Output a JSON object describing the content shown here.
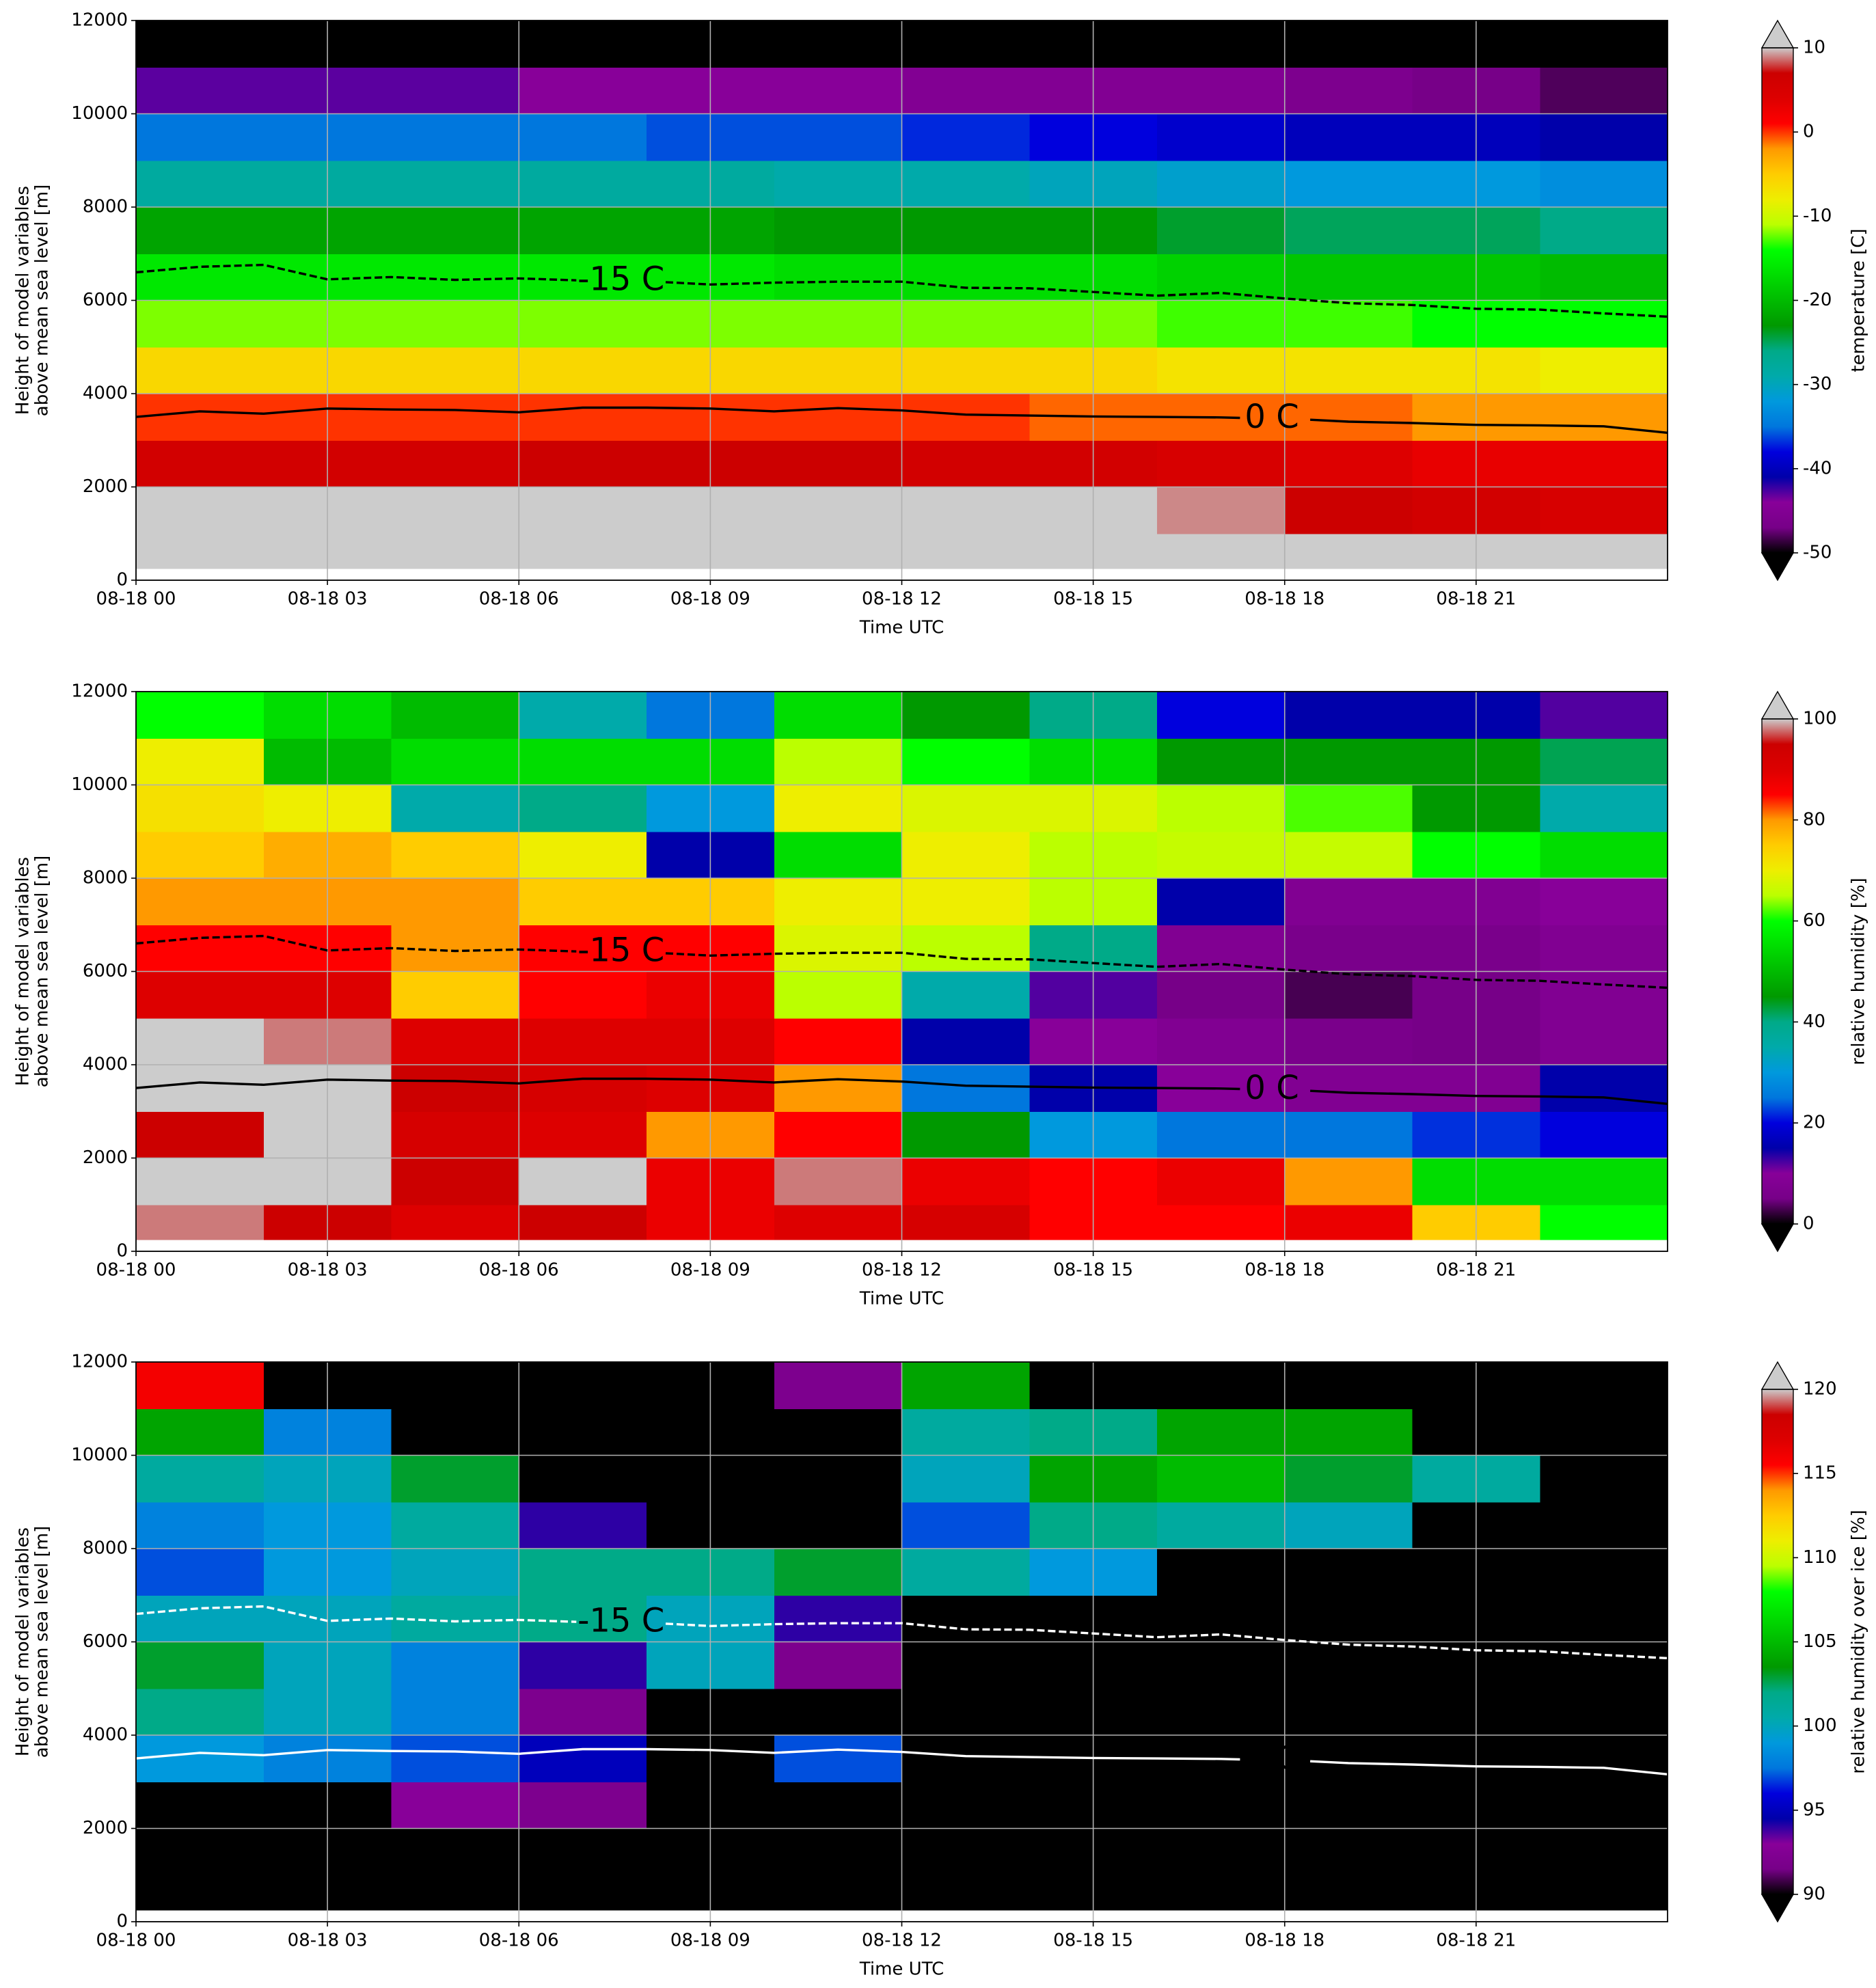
{
  "chart_data": [
    {
      "type": "heatmap",
      "colormap": "nipy_spectral",
      "xlabel": "Time UTC",
      "ylabel": [
        "Height of model variables",
        "above mean sea level [m]"
      ],
      "xlim": [
        0,
        24
      ],
      "xticks": [
        {
          "value": 0,
          "label": "08-18 00"
        },
        {
          "value": 3,
          "label": "08-18 03"
        },
        {
          "value": 6,
          "label": "08-18 06"
        },
        {
          "value": 9,
          "label": "08-18 09"
        },
        {
          "value": 12,
          "label": "08-18 12"
        },
        {
          "value": 15,
          "label": "08-18 15"
        },
        {
          "value": 18,
          "label": "08-18 18"
        },
        {
          "value": 21,
          "label": "08-18 21"
        }
      ],
      "ylim": [
        0,
        12000
      ],
      "yticks": [
        0,
        2000,
        4000,
        6000,
        8000,
        10000,
        12000
      ],
      "grid": true,
      "x_edges": [
        0,
        2,
        4,
        6,
        8,
        10,
        12,
        14,
        16,
        18,
        20,
        22,
        24
      ],
      "y_edges": [
        250,
        1000,
        2000,
        3000,
        4000,
        5000,
        6000,
        7000,
        8000,
        9000,
        10000,
        11000,
        12000
      ],
      "z": [
        [
          15,
          15,
          15,
          15,
          15,
          15,
          15,
          15,
          15,
          15,
          15,
          12
        ],
        [
          14,
          14,
          13,
          14,
          14,
          14,
          14,
          13,
          9,
          7,
          6,
          5
        ],
        [
          6,
          6,
          6,
          7,
          7,
          7,
          6,
          6,
          5,
          4,
          3,
          3
        ],
        [
          0,
          0,
          0,
          0,
          0,
          0,
          0,
          -1,
          -1,
          -1,
          -2,
          -2
        ],
        [
          -6,
          -6,
          -6,
          -6,
          -6,
          -6,
          -6,
          -6,
          -7,
          -7,
          -7,
          -8
        ],
        [
          -12,
          -12,
          -12,
          -12,
          -12,
          -12,
          -12,
          -12,
          -13,
          -13,
          -14,
          -14
        ],
        [
          -16,
          -16,
          -16,
          -16,
          -16,
          -17,
          -17,
          -17,
          -18,
          -19,
          -19,
          -20
        ],
        [
          -22,
          -22,
          -22,
          -22,
          -22,
          -23,
          -23,
          -23,
          -24,
          -25,
          -25,
          -26
        ],
        [
          -28,
          -28,
          -28,
          -28,
          -28,
          -29,
          -29,
          -30,
          -31,
          -32,
          -32,
          -33
        ],
        [
          -35,
          -35,
          -35,
          -35,
          -36,
          -36,
          -37,
          -38,
          -39,
          -40,
          -40,
          -41
        ],
        [
          -43,
          -43,
          -43,
          -44,
          -44,
          -44,
          -45,
          -45,
          -45,
          -46,
          -47,
          -48
        ],
        [
          -52,
          -52,
          -52,
          -52,
          -52,
          -52,
          -52,
          -52,
          -52,
          -52,
          -52,
          -52
        ]
      ],
      "clim": [
        -50,
        10
      ],
      "cticks": [
        -50,
        -40,
        -30,
        -20,
        -10,
        0,
        10
      ],
      "colorbar_label": "temperature [C]",
      "colorbar_extend": "both",
      "contours": [
        {
          "name": "-15 C",
          "linestyle": "dashed",
          "color": "#000000",
          "x": [
            0,
            1,
            2,
            3,
            4,
            5,
            6,
            6.9,
            7.6,
            8.3,
            9,
            10,
            11,
            12,
            13,
            14,
            15,
            16,
            17,
            18,
            19,
            20,
            21,
            22,
            23,
            24
          ],
          "values": [
            6600,
            6720,
            6760,
            6450,
            6500,
            6440,
            6470,
            6430,
            null,
            6390,
            6340,
            6380,
            6400,
            6400,
            6270,
            6260,
            6180,
            6100,
            6160,
            6040,
            5940,
            5900,
            5820,
            5800,
            5720,
            5650
          ]
        },
        {
          "name": "0 C",
          "linestyle": "solid",
          "color": "#000000",
          "x": [
            0,
            1,
            2,
            3,
            4,
            5,
            6,
            7,
            8,
            9,
            10,
            11,
            12,
            13,
            14,
            15,
            16,
            17,
            17.3,
            17.8,
            18.4,
            19,
            20,
            21,
            22,
            23,
            24
          ],
          "values": [
            3500,
            3620,
            3570,
            3680,
            3660,
            3650,
            3600,
            3700,
            3700,
            3680,
            3620,
            3690,
            3640,
            3550,
            3530,
            3510,
            3500,
            3490,
            3480,
            null,
            3440,
            3400,
            3370,
            3330,
            3320,
            3300,
            3160
          ]
        }
      ]
    },
    {
      "type": "heatmap",
      "colormap": "nipy_spectral",
      "xlabel": "Time UTC",
      "ylabel": [
        "Height of model variables",
        "above mean sea level [m]"
      ],
      "xlim": [
        0,
        24
      ],
      "xticks": [
        {
          "value": 0,
          "label": "08-18 00"
        },
        {
          "value": 3,
          "label": "08-18 03"
        },
        {
          "value": 6,
          "label": "08-18 06"
        },
        {
          "value": 9,
          "label": "08-18 09"
        },
        {
          "value": 12,
          "label": "08-18 12"
        },
        {
          "value": 15,
          "label": "08-18 15"
        },
        {
          "value": 18,
          "label": "08-18 18"
        },
        {
          "value": 21,
          "label": "08-18 21"
        }
      ],
      "ylim": [
        0,
        12000
      ],
      "yticks": [
        0,
        2000,
        4000,
        6000,
        8000,
        10000,
        12000
      ],
      "grid": true,
      "x_edges": [
        0,
        2,
        4,
        6,
        8,
        10,
        12,
        14,
        16,
        18,
        20,
        22,
        24
      ],
      "y_edges": [
        250,
        1000,
        2000,
        3000,
        4000,
        5000,
        6000,
        7000,
        8000,
        9000,
        10000,
        11000,
        12000
      ],
      "z": [
        [
          98,
          95,
          90,
          95,
          88,
          90,
          92,
          85,
          85,
          88,
          75,
          60
        ],
        [
          100,
          100,
          95,
          100,
          88,
          98,
          88,
          85,
          88,
          80,
          55,
          55
        ],
        [
          95,
          100,
          92,
          90,
          80,
          85,
          45,
          30,
          25,
          25,
          22,
          20
        ],
        [
          100,
          100,
          95,
          92,
          90,
          80,
          25,
          15,
          10,
          8,
          8,
          15
        ],
        [
          100,
          98,
          90,
          90,
          90,
          85,
          15,
          10,
          8,
          6,
          5,
          8
        ],
        [
          90,
          90,
          75,
          85,
          88,
          65,
          35,
          12,
          5,
          3,
          5,
          8
        ],
        [
          85,
          85,
          80,
          85,
          85,
          68,
          65,
          40,
          8,
          6,
          6,
          8
        ],
        [
          80,
          80,
          80,
          75,
          75,
          70,
          70,
          65,
          15,
          8,
          8,
          10
        ],
        [
          75,
          78,
          75,
          70,
          15,
          55,
          70,
          65,
          66,
          66,
          60,
          55
        ],
        [
          72,
          70,
          35,
          40,
          30,
          70,
          68,
          68,
          65,
          62,
          45,
          35
        ],
        [
          70,
          50,
          55,
          55,
          55,
          65,
          60,
          55,
          45,
          45,
          45,
          42
        ],
        [
          60,
          55,
          50,
          35,
          25,
          55,
          45,
          40,
          20,
          15,
          15,
          12
        ]
      ],
      "clim": [
        0,
        100
      ],
      "cticks": [
        0,
        20,
        40,
        60,
        80,
        100
      ],
      "colorbar_label": "relative humidity [%]",
      "colorbar_extend": "both",
      "contours": [
        {
          "name": "-15 C",
          "linestyle": "dashed",
          "color": "#000000",
          "x": [
            0,
            1,
            2,
            3,
            4,
            5,
            6,
            6.9,
            7.6,
            8.3,
            9,
            10,
            11,
            12,
            13,
            14,
            15,
            16,
            17,
            18,
            19,
            20,
            21,
            22,
            23,
            24
          ],
          "values": [
            6600,
            6720,
            6760,
            6450,
            6500,
            6440,
            6470,
            6430,
            null,
            6390,
            6340,
            6380,
            6400,
            6400,
            6270,
            6260,
            6180,
            6100,
            6160,
            6040,
            5940,
            5900,
            5820,
            5800,
            5720,
            5650
          ]
        },
        {
          "name": "0 C",
          "linestyle": "solid",
          "color": "#000000",
          "x": [
            0,
            1,
            2,
            3,
            4,
            5,
            6,
            7,
            8,
            9,
            10,
            11,
            12,
            13,
            14,
            15,
            16,
            17,
            17.3,
            17.8,
            18.4,
            19,
            20,
            21,
            22,
            23,
            24
          ],
          "values": [
            3500,
            3620,
            3570,
            3680,
            3660,
            3650,
            3600,
            3700,
            3700,
            3680,
            3620,
            3690,
            3640,
            3550,
            3530,
            3510,
            3500,
            3490,
            3480,
            null,
            3440,
            3400,
            3370,
            3330,
            3320,
            3300,
            3160
          ]
        }
      ]
    },
    {
      "type": "heatmap",
      "colormap": "nipy_spectral",
      "xlabel": "Time UTC",
      "ylabel": [
        "Height of model variables",
        "above mean sea level [m]"
      ],
      "xlim": [
        0,
        24
      ],
      "xticks": [
        {
          "value": 0,
          "label": "08-18 00"
        },
        {
          "value": 3,
          "label": "08-18 03"
        },
        {
          "value": 6,
          "label": "08-18 06"
        },
        {
          "value": 9,
          "label": "08-18 09"
        },
        {
          "value": 12,
          "label": "08-18 12"
        },
        {
          "value": 15,
          "label": "08-18 15"
        },
        {
          "value": 18,
          "label": "08-18 18"
        },
        {
          "value": 21,
          "label": "08-18 21"
        }
      ],
      "ylim": [
        0,
        12000
      ],
      "yticks": [
        0,
        2000,
        4000,
        6000,
        8000,
        10000,
        12000
      ],
      "grid": true,
      "x_edges": [
        0,
        2,
        4,
        6,
        8,
        10,
        12,
        14,
        16,
        18,
        20,
        22,
        24
      ],
      "y_edges": [
        250,
        1000,
        2000,
        3000,
        4000,
        5000,
        6000,
        7000,
        8000,
        9000,
        10000,
        11000,
        12000
      ],
      "z": [
        [
          80,
          80,
          80,
          80,
          80,
          80,
          80,
          80,
          80,
          80,
          80,
          80
        ],
        [
          80,
          85,
          90,
          80,
          80,
          80,
          80,
          80,
          80,
          80,
          80,
          80
        ],
        [
          80,
          80,
          93,
          92,
          80,
          80,
          80,
          80,
          80,
          80,
          80,
          80
        ],
        [
          99,
          98,
          97,
          95,
          80,
          97,
          80,
          80,
          80,
          80,
          80,
          80
        ],
        [
          102,
          100,
          98,
          92,
          80,
          80,
          80,
          80,
          80,
          80,
          80,
          80
        ],
        [
          103,
          100,
          98,
          94,
          100,
          92,
          80,
          80,
          80,
          80,
          80,
          80
        ],
        [
          100,
          100,
          101,
          102,
          100,
          94,
          80,
          80,
          80,
          80,
          80,
          80
        ],
        [
          97,
          99,
          100,
          102,
          102,
          103,
          101,
          99,
          80,
          80,
          80,
          80
        ],
        [
          98,
          99,
          101,
          94,
          80,
          80,
          97,
          102,
          101,
          100,
          80,
          80
        ],
        [
          101,
          100,
          103,
          80,
          80,
          80,
          100,
          104,
          105,
          103,
          101,
          80
        ],
        [
          104,
          98,
          80,
          80,
          80,
          80,
          101,
          102,
          104,
          104,
          80,
          80
        ],
        [
          116,
          80,
          80,
          80,
          80,
          92,
          104,
          80,
          80,
          80,
          80,
          80
        ]
      ],
      "clim": [
        90,
        120
      ],
      "cticks": [
        90,
        95,
        100,
        105,
        110,
        115,
        120
      ],
      "colorbar_label": "relative humidity over ice [%]",
      "colorbar_extend": "both",
      "contours": [
        {
          "name": "-15 C",
          "linestyle": "dashed",
          "color": "#ffffff",
          "x": [
            0,
            1,
            2,
            3,
            4,
            5,
            6,
            6.9,
            7.6,
            8.3,
            9,
            10,
            11,
            12,
            13,
            14,
            15,
            16,
            17,
            18,
            19,
            20,
            21,
            22,
            23,
            24
          ],
          "values": [
            6600,
            6720,
            6760,
            6450,
            6500,
            6440,
            6470,
            6430,
            null,
            6390,
            6340,
            6380,
            6400,
            6400,
            6270,
            6260,
            6180,
            6100,
            6160,
            6040,
            5940,
            5900,
            5820,
            5800,
            5720,
            5650
          ]
        },
        {
          "name": "0 C",
          "linestyle": "solid",
          "color": "#ffffff",
          "x": [
            0,
            1,
            2,
            3,
            4,
            5,
            6,
            7,
            8,
            9,
            10,
            11,
            12,
            13,
            14,
            15,
            16,
            17,
            17.3,
            17.8,
            18.4,
            19,
            20,
            21,
            22,
            23,
            24
          ],
          "values": [
            3500,
            3620,
            3570,
            3680,
            3660,
            3650,
            3600,
            3700,
            3700,
            3680,
            3620,
            3690,
            3640,
            3550,
            3530,
            3510,
            3500,
            3490,
            3480,
            null,
            3440,
            3400,
            3370,
            3330,
            3320,
            3300,
            3160
          ]
        }
      ]
    }
  ]
}
